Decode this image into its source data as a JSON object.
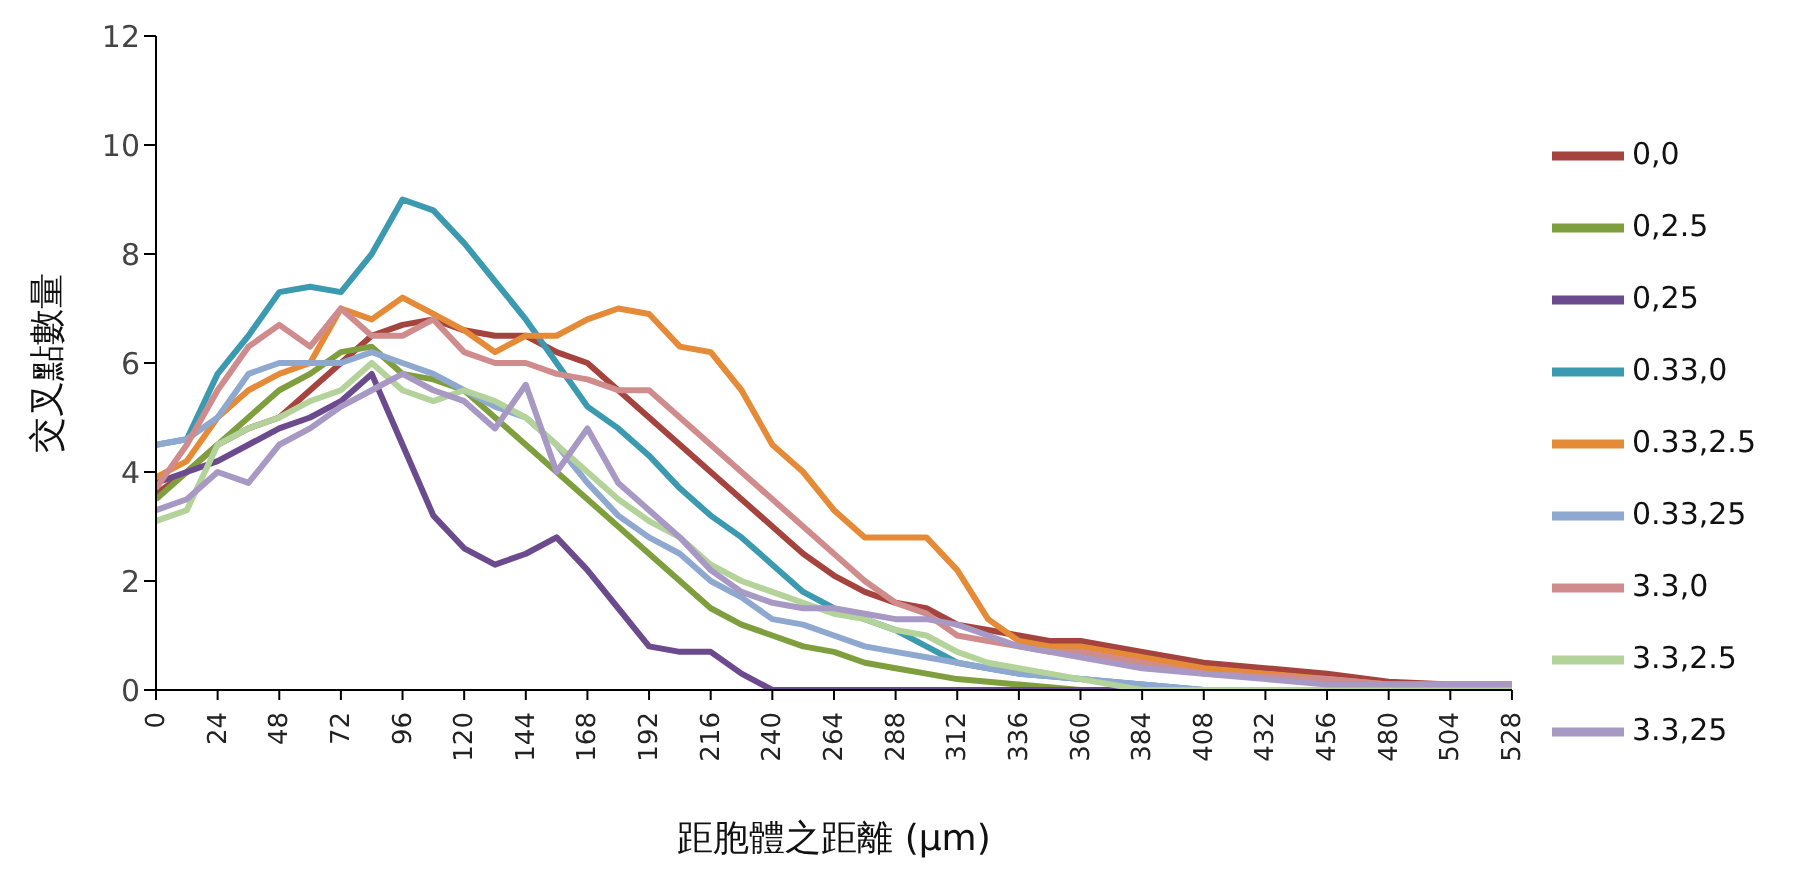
{
  "chart_data": {
    "type": "line",
    "xlabel": "距胞體之距離  (µm)",
    "ylabel": "交叉點數量",
    "x": [
      0,
      12,
      24,
      36,
      48,
      60,
      72,
      84,
      96,
      108,
      120,
      132,
      144,
      156,
      168,
      180,
      192,
      204,
      216,
      228,
      240,
      252,
      264,
      276,
      288,
      300,
      312,
      324,
      336,
      348,
      360,
      384,
      408,
      432,
      456,
      480,
      504,
      528
    ],
    "xlim": [
      0,
      528
    ],
    "xticks": [
      0,
      24,
      48,
      72,
      96,
      120,
      144,
      168,
      192,
      216,
      240,
      264,
      288,
      312,
      336,
      360,
      384,
      408,
      432,
      456,
      480,
      504,
      528
    ],
    "ylim": [
      0,
      12
    ],
    "yticks": [
      0,
      2,
      4,
      6,
      8,
      10,
      12
    ],
    "grid": false,
    "legend": "right",
    "marker": "none",
    "line_style": "solid",
    "series": [
      {
        "name": "0,0",
        "color": "#a5433f",
        "values": [
          3.6,
          4.0,
          4.5,
          4.8,
          5.0,
          5.5,
          6.0,
          6.5,
          6.7,
          6.8,
          6.6,
          6.5,
          6.5,
          6.2,
          6.0,
          5.5,
          5.0,
          4.5,
          4.0,
          3.5,
          3.0,
          2.5,
          2.1,
          1.8,
          1.6,
          1.5,
          1.2,
          1.1,
          1.0,
          0.9,
          0.9,
          0.7,
          0.5,
          0.4,
          0.3,
          0.15,
          0.1,
          0.1
        ]
      },
      {
        "name": "0,2.5",
        "color": "#7f9f3f",
        "values": [
          3.5,
          4.0,
          4.5,
          5.0,
          5.5,
          5.8,
          6.2,
          6.3,
          5.8,
          5.7,
          5.5,
          5.0,
          4.5,
          4.0,
          3.5,
          3.0,
          2.5,
          2.0,
          1.5,
          1.2,
          1.0,
          0.8,
          0.7,
          0.5,
          0.4,
          0.3,
          0.2,
          0.15,
          0.1,
          0.05,
          0,
          0,
          0,
          0,
          0,
          0,
          0,
          0
        ]
      },
      {
        "name": "0,25",
        "color": "#6b4b8e",
        "values": [
          3.8,
          4.0,
          4.2,
          4.5,
          4.8,
          5.0,
          5.3,
          5.8,
          4.5,
          3.2,
          2.6,
          2.3,
          2.5,
          2.8,
          2.2,
          1.5,
          0.8,
          0.7,
          0.7,
          0.3,
          0,
          0,
          0,
          0,
          0,
          0,
          0,
          0,
          0,
          0,
          0,
          0,
          0,
          0,
          0,
          0,
          0,
          0
        ]
      },
      {
        "name": "0.33,0",
        "color": "#3b9ab0",
        "values": [
          4.5,
          4.6,
          5.8,
          6.5,
          7.3,
          7.4,
          7.3,
          8.0,
          9.0,
          8.8,
          8.2,
          7.5,
          6.8,
          6.0,
          5.2,
          4.8,
          4.3,
          3.7,
          3.2,
          2.8,
          2.3,
          1.8,
          1.5,
          1.3,
          1.1,
          0.8,
          0.5,
          0.4,
          0.3,
          0.25,
          0.2,
          0.1,
          0,
          0,
          null,
          null,
          null,
          null
        ]
      },
      {
        "name": "0.33,2.5",
        "color": "#e58a36",
        "values": [
          3.9,
          4.2,
          5.0,
          5.5,
          5.8,
          6.0,
          7.0,
          6.8,
          7.2,
          6.9,
          6.6,
          6.2,
          6.5,
          6.5,
          6.8,
          7.0,
          6.9,
          6.3,
          6.2,
          5.5,
          4.5,
          4.0,
          3.3,
          2.8,
          2.8,
          2.8,
          2.2,
          1.3,
          0.9,
          0.8,
          0.8,
          0.6,
          0.4,
          0.3,
          0.2,
          0.1,
          0.1,
          0.1
        ]
      },
      {
        "name": "0.33,25",
        "color": "#8ea8d0",
        "values": [
          4.5,
          4.6,
          5.0,
          5.8,
          6.0,
          6.0,
          6.0,
          6.2,
          6.0,
          5.8,
          5.5,
          5.2,
          5.0,
          4.5,
          3.8,
          3.2,
          2.8,
          2.5,
          2.0,
          1.7,
          1.3,
          1.2,
          1.0,
          0.8,
          0.7,
          0.6,
          0.5,
          0.4,
          0.3,
          0.25,
          0.2,
          0.1,
          0,
          0,
          0,
          0,
          0,
          0
        ]
      },
      {
        "name": "3.3,0",
        "color": "#d08c8c",
        "values": [
          3.7,
          4.5,
          5.5,
          6.3,
          6.7,
          6.3,
          7.0,
          6.5,
          6.5,
          6.8,
          6.2,
          6.0,
          6.0,
          5.8,
          5.7,
          5.5,
          5.5,
          5.0,
          4.5,
          4.0,
          3.5,
          3.0,
          2.5,
          2.0,
          1.6,
          1.4,
          1.0,
          0.9,
          0.8,
          0.7,
          0.7,
          0.5,
          0.3,
          0.25,
          0.2,
          0.1,
          0.1,
          0.1
        ]
      },
      {
        "name": "3.3,2.5",
        "color": "#b4d39a",
        "values": [
          3.1,
          3.3,
          4.5,
          4.8,
          5.0,
          5.3,
          5.5,
          6.0,
          5.5,
          5.3,
          5.5,
          5.3,
          5.0,
          4.5,
          4.0,
          3.5,
          3.1,
          2.8,
          2.3,
          2.0,
          1.8,
          1.6,
          1.4,
          1.3,
          1.1,
          1.0,
          0.7,
          0.5,
          0.4,
          0.3,
          0.2,
          0,
          0,
          0,
          0,
          0,
          0,
          0
        ]
      },
      {
        "name": "3.3,25",
        "color": "#a898c4",
        "values": [
          3.3,
          3.5,
          4.0,
          3.8,
          4.5,
          4.8,
          5.2,
          5.5,
          5.8,
          5.5,
          5.3,
          4.8,
          5.6,
          4.0,
          4.8,
          3.8,
          3.3,
          2.8,
          2.2,
          1.8,
          1.6,
          1.5,
          1.5,
          1.4,
          1.3,
          1.3,
          1.2,
          1.0,
          0.8,
          0.7,
          0.6,
          0.4,
          0.3,
          0.2,
          0.1,
          0.1,
          0.1,
          0.1
        ]
      }
    ]
  }
}
